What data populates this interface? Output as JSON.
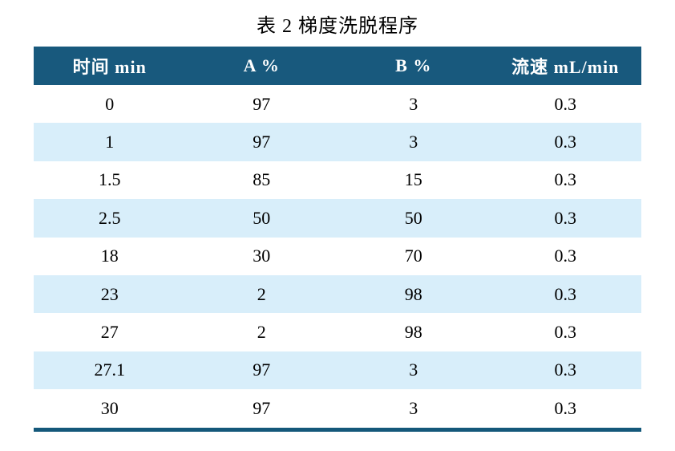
{
  "title": "表 2 梯度洗脱程序",
  "table": {
    "headers": [
      "时间 min",
      "A %",
      "B %",
      "流速 mL/min"
    ],
    "rows": [
      [
        "0",
        "97",
        "3",
        "0.3"
      ],
      [
        "1",
        "97",
        "3",
        "0.3"
      ],
      [
        "1.5",
        "85",
        "15",
        "0.3"
      ],
      [
        "2.5",
        "50",
        "50",
        "0.3"
      ],
      [
        "18",
        "30",
        "70",
        "0.3"
      ],
      [
        "23",
        "2",
        "98",
        "0.3"
      ],
      [
        "27",
        "2",
        "98",
        "0.3"
      ],
      [
        "27.1",
        "97",
        "3",
        "0.3"
      ],
      [
        "30",
        "97",
        "3",
        "0.3"
      ]
    ]
  },
  "colors": {
    "header_bg": "#18597D",
    "header_text": "#FFFFFF",
    "row_alt_bg": "#D8EEFA",
    "bottom_rule": "#14587A",
    "body_text": "#000000"
  }
}
